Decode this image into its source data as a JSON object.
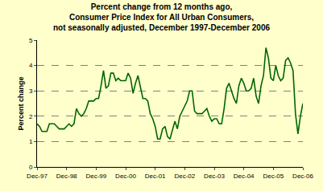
{
  "chart_data": {
    "type": "line",
    "title": "Percent change from 12 months ago,\nConsumer Price Index for All Urban Consumers,\nnot seasonally adjusted, December 1997-December 2006",
    "y_label": "Percent change",
    "categories": [
      "Dec-97",
      null,
      null,
      null,
      null,
      null,
      null,
      null,
      null,
      null,
      null,
      null,
      "Dec-98",
      null,
      null,
      null,
      null,
      null,
      null,
      null,
      null,
      null,
      null,
      null,
      "Dec-99",
      null,
      null,
      null,
      null,
      null,
      null,
      null,
      null,
      null,
      null,
      null,
      "Dec-00",
      null,
      null,
      null,
      null,
      null,
      null,
      null,
      null,
      null,
      null,
      null,
      "Dec-01",
      null,
      null,
      null,
      null,
      null,
      null,
      null,
      null,
      null,
      null,
      null,
      "Dec-02",
      null,
      null,
      null,
      null,
      null,
      null,
      null,
      null,
      null,
      null,
      null,
      "Dec-03",
      null,
      null,
      null,
      null,
      null,
      null,
      null,
      null,
      null,
      null,
      null,
      "Dec-04",
      null,
      null,
      null,
      null,
      null,
      null,
      null,
      null,
      null,
      null,
      null,
      "Dec-05",
      null,
      null,
      null,
      null,
      null,
      null,
      null,
      null,
      null,
      null,
      null,
      "Dec-06"
    ],
    "series": [
      {
        "color": "#006600",
        "line_style": "solid",
        "values": [
          1.7,
          1.6,
          1.4,
          1.4,
          1.4,
          1.7,
          1.7,
          1.7,
          1.6,
          1.5,
          1.5,
          1.5,
          1.6,
          1.7,
          1.6,
          1.7,
          2.3,
          2.1,
          2.0,
          2.1,
          2.3,
          2.6,
          2.6,
          2.6,
          2.7,
          2.7,
          3.2,
          3.8,
          3.1,
          3.2,
          3.7,
          3.7,
          3.4,
          3.5,
          3.4,
          3.4,
          3.4,
          3.7,
          3.5,
          2.9,
          3.3,
          3.6,
          3.2,
          2.7,
          2.7,
          2.6,
          2.1,
          1.9,
          1.6,
          1.1,
          1.1,
          1.5,
          1.6,
          1.2,
          1.1,
          1.5,
          1.8,
          1.5,
          2.0,
          2.2,
          2.4,
          2.6,
          3.0,
          3.0,
          2.2,
          2.1,
          2.1,
          2.1,
          2.2,
          2.3,
          2.0,
          1.8,
          1.9,
          1.9,
          1.7,
          1.7,
          2.3,
          3.1,
          3.3,
          3.0,
          2.7,
          2.5,
          3.2,
          3.5,
          3.3,
          3.0,
          3.0,
          3.1,
          3.5,
          2.8,
          2.5,
          3.2,
          3.6,
          4.7,
          4.3,
          3.5,
          3.4,
          4.0,
          3.6,
          3.4,
          3.5,
          4.2,
          4.3,
          4.1,
          3.8,
          2.1,
          1.3,
          2.0,
          2.5
        ]
      }
    ],
    "ylim": [
      0,
      5
    ],
    "yticks": [
      0,
      1,
      2,
      3,
      4,
      5
    ],
    "grid": true
  }
}
